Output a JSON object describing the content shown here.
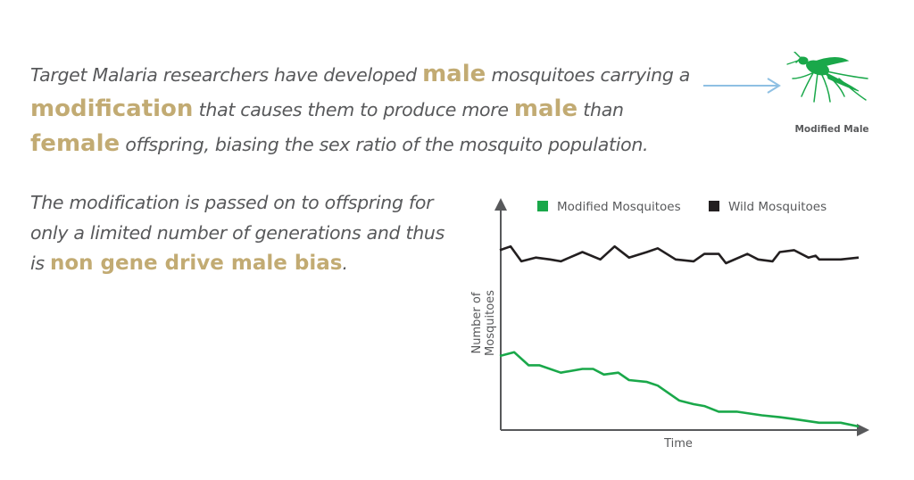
{
  "intro": {
    "t1": "Target Malaria researchers have developed ",
    "h1": "male",
    "t2": " mosquitoes carrying a ",
    "h2": "modification",
    "t3": " that causes them to produce more ",
    "h3": "male",
    "t4": " than ",
    "h4": "female",
    "t5": " offspring, biasing the sex ratio of the mosquito population."
  },
  "second": {
    "t1": "The modification is passed on to offspring for only a limited number of generations and thus is ",
    "h1": "non gene drive male bias",
    "t2": "."
  },
  "icon": {
    "label": "Modified Male",
    "name": "mosquito-icon",
    "color": "#1aa84a"
  },
  "colors": {
    "highlight": "#c2ab73",
    "text": "#58595b",
    "modified": "#1aa84a",
    "wild": "#231f20",
    "arrow": "#8fc0e3"
  },
  "chart_data": {
    "type": "line",
    "title": "",
    "xlabel": "Time",
    "ylabel": "Number of Mosquitoes",
    "xlim": [
      0,
      100
    ],
    "ylim": [
      0,
      100
    ],
    "grid": false,
    "legend_position": "top",
    "series": [
      {
        "name": "Modified Mosquitoes",
        "color": "#1aa84a",
        "x": [
          0,
          4,
          8,
          11,
          17,
          23,
          26,
          29,
          33,
          36,
          41,
          44,
          50,
          54,
          57,
          61,
          66,
          73,
          78,
          82,
          89,
          95,
          100
        ],
        "y": [
          38,
          40,
          33,
          33,
          29,
          31,
          31,
          28,
          29,
          25,
          24,
          22,
          14,
          12,
          11,
          8,
          8,
          6,
          5,
          4,
          2,
          2,
          0
        ]
      },
      {
        "name": "Wild Mosquitoes",
        "color": "#231f20",
        "x": [
          0,
          3,
          6,
          10,
          14,
          17,
          23,
          28,
          32,
          36,
          41,
          44,
          49,
          54,
          57,
          61,
          63,
          69,
          72,
          76,
          78,
          82,
          86,
          88,
          89,
          95,
          100
        ],
        "y": [
          95,
          97,
          89,
          91,
          90,
          89,
          94,
          90,
          97,
          91,
          94,
          96,
          90,
          89,
          93,
          93,
          88,
          93,
          90,
          89,
          94,
          95,
          91,
          92,
          90,
          90,
          91
        ]
      }
    ]
  }
}
